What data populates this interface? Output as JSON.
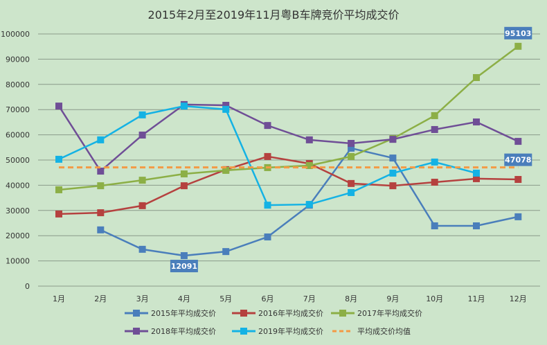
{
  "chart_data": {
    "type": "line",
    "title": "2015年2月至2019年11月粤B车牌竞价平均成交价",
    "categories": [
      "1月",
      "2月",
      "3月",
      "4月",
      "5月",
      "6月",
      "7月",
      "8月",
      "9月",
      "10月",
      "11月",
      "12月"
    ],
    "ylim": [
      0,
      100000
    ],
    "yticks": [
      "0",
      "10000",
      "20000",
      "30000",
      "40000",
      "50000",
      "60000",
      "70000",
      "80000",
      "90000",
      "100000"
    ],
    "grid": true,
    "legend_position": "bottom",
    "series": [
      {
        "name": "2015年平均成交价",
        "color": "#4a7ebb",
        "values": [
          null,
          22300,
          14600,
          12091,
          13700,
          19500,
          32100,
          54700,
          50800,
          23900,
          23900,
          27500
        ]
      },
      {
        "name": "2016年平均成交价",
        "color": "#b5413f",
        "values": [
          28600,
          29100,
          31900,
          39800,
          46200,
          51400,
          48600,
          40700,
          39800,
          41200,
          42600,
          42300
        ]
      },
      {
        "name": "2017年平均成交价",
        "color": "#8caf46",
        "values": [
          38200,
          39800,
          42000,
          44500,
          45900,
          47000,
          47800,
          51400,
          58500,
          67600,
          82700,
          95103
        ]
      },
      {
        "name": "2018年平均成交价",
        "color": "#6f4e96",
        "values": [
          71400,
          45600,
          59900,
          72000,
          71700,
          63700,
          58000,
          56600,
          58200,
          62100,
          65100,
          57400
        ]
      },
      {
        "name": "2019年平均成交价",
        "color": "#14b2e4",
        "values": [
          50300,
          58000,
          67900,
          71400,
          70100,
          32100,
          32400,
          37100,
          44800,
          49200,
          44800,
          null
        ]
      },
      {
        "name": "平均成交价均值",
        "color": "#f39a45",
        "dashed": true,
        "values": [
          47078,
          47078,
          47078,
          47078,
          47078,
          47078,
          47078,
          47078,
          47078,
          47078,
          47078,
          47078
        ]
      }
    ],
    "data_labels": [
      {
        "series": 0,
        "index": 3,
        "text": "12091"
      },
      {
        "series": 2,
        "index": 11,
        "text": "95103"
      },
      {
        "series": 5,
        "index": 11,
        "text": "47078"
      }
    ]
  }
}
